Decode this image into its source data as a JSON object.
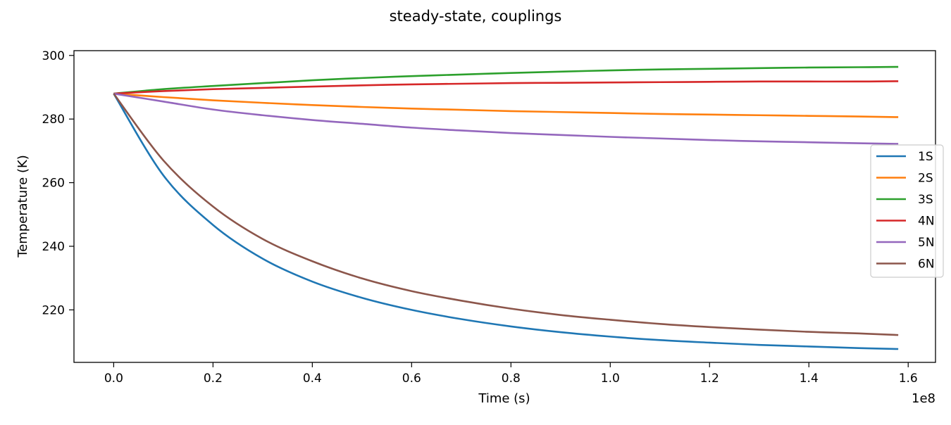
{
  "chart_data": {
    "type": "line",
    "title": "steady-state, couplings",
    "xlabel": "Time (s)",
    "ylabel": "Temperature (K)",
    "x_offset_label": "1e8",
    "xlim": [
      -0.08,
      1.655
    ],
    "ylim": [
      203.5,
      301.5
    ],
    "x_ticks": [
      0.0,
      0.2,
      0.4,
      0.6,
      0.8,
      1.0,
      1.2,
      1.4,
      1.6
    ],
    "x_tick_labels": [
      "0.0",
      "0.2",
      "0.4",
      "0.6",
      "0.8",
      "1.0",
      "1.2",
      "1.4",
      "1.6"
    ],
    "y_ticks": [
      220,
      240,
      260,
      280,
      300
    ],
    "y_tick_labels": [
      "220",
      "240",
      "260",
      "280",
      "300"
    ],
    "grid": false,
    "legend_position": "center-right",
    "x": [
      0.0,
      0.1,
      0.2,
      0.3,
      0.4,
      0.5,
      0.6,
      0.7,
      0.8,
      0.9,
      1.0,
      1.1,
      1.2,
      1.3,
      1.4,
      1.5,
      1.58
    ],
    "series": [
      {
        "name": "1S",
        "color": "#1f77b4",
        "values": [
          288.0,
          262.3,
          246.7,
          236.1,
          228.9,
          223.8,
          220.0,
          217.1,
          214.8,
          213.0,
          211.6,
          210.5,
          209.7,
          209.0,
          208.5,
          208.0,
          207.7
        ]
      },
      {
        "name": "2S",
        "color": "#ff7f0e",
        "values": [
          288.0,
          286.9,
          285.9,
          285.1,
          284.4,
          283.8,
          283.3,
          282.9,
          282.5,
          282.2,
          281.9,
          281.6,
          281.4,
          281.2,
          281.0,
          280.8,
          280.6
        ]
      },
      {
        "name": "3S",
        "color": "#2ca02c",
        "values": [
          288.0,
          289.4,
          290.4,
          291.3,
          292.2,
          292.9,
          293.5,
          294.0,
          294.5,
          294.9,
          295.3,
          295.6,
          295.8,
          296.0,
          296.2,
          296.3,
          296.4
        ]
      },
      {
        "name": "4N",
        "color": "#d62728",
        "values": [
          288.0,
          288.8,
          289.4,
          289.8,
          290.2,
          290.6,
          290.9,
          291.1,
          291.3,
          291.4,
          291.5,
          291.6,
          291.7,
          291.8,
          291.8,
          291.8,
          291.9
        ]
      },
      {
        "name": "5N",
        "color": "#9467bd",
        "values": [
          288.0,
          285.5,
          283.0,
          281.2,
          279.7,
          278.5,
          277.3,
          276.4,
          275.6,
          275.0,
          274.4,
          273.9,
          273.4,
          273.0,
          272.7,
          272.4,
          272.2
        ]
      },
      {
        "name": "6N",
        "color": "#8c564b",
        "values": [
          288.0,
          267.0,
          252.5,
          242.3,
          235.3,
          229.9,
          225.9,
          222.9,
          220.4,
          218.4,
          216.9,
          215.6,
          214.6,
          213.8,
          213.1,
          212.6,
          212.1
        ]
      }
    ]
  }
}
